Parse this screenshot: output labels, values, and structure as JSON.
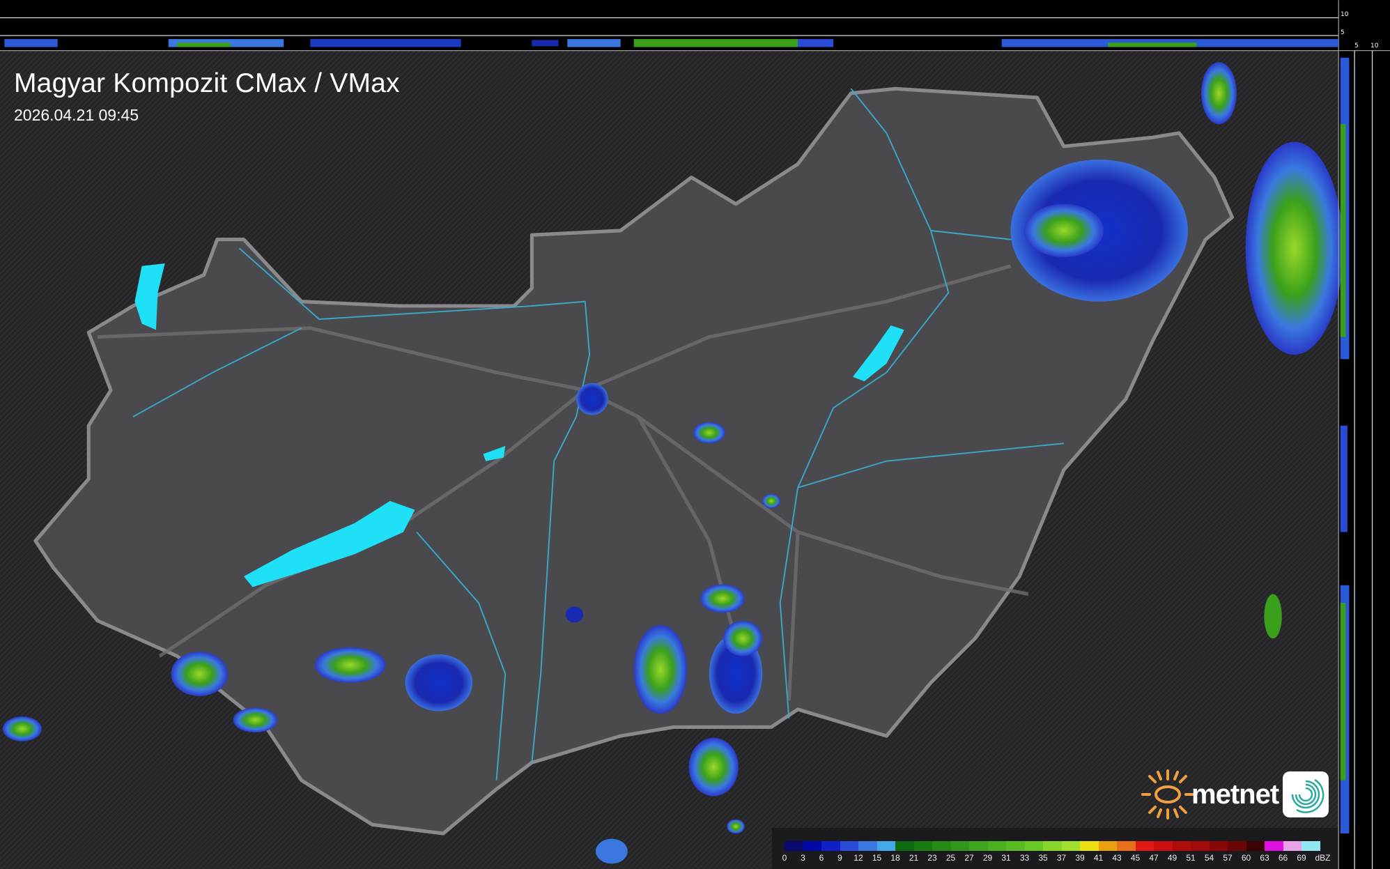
{
  "header": {
    "title": "Magyar Kompozit CMax / VMax",
    "timestamp": "2026.04.21 09:45"
  },
  "profile_axes": {
    "top_right_labels": [
      "10",
      "5"
    ],
    "right_bottom_labels": [
      "5",
      "10"
    ]
  },
  "legend": {
    "unit": "dBZ",
    "labels": [
      "0",
      "3",
      "6",
      "9",
      "12",
      "15",
      "18",
      "21",
      "23",
      "25",
      "27",
      "29",
      "31",
      "33",
      "35",
      "37",
      "39",
      "41",
      "43",
      "45",
      "47",
      "49",
      "51",
      "54",
      "57",
      "60",
      "63",
      "66",
      "69"
    ],
    "colors": [
      "#0a0a6e",
      "#0008a8",
      "#1020c8",
      "#2a4ad8",
      "#3a78e0",
      "#44a8e8",
      "#0e6a10",
      "#1a7a12",
      "#268a16",
      "#32961a",
      "#3ea41e",
      "#4cb020",
      "#5abc22",
      "#6ac824",
      "#88d428",
      "#a0e02c",
      "#e8e010",
      "#eaa010",
      "#e87018",
      "#e01818",
      "#c81010",
      "#b00c0c",
      "#a00a0a",
      "#880808",
      "#6a0606",
      "#3a0404",
      "#e010e0",
      "#e8a0e8",
      "#90e8f0"
    ]
  },
  "logo": {
    "brand": "metnet"
  },
  "colors": {
    "land_inside": "#4a4a4e",
    "land_outside": "#2a2a2c",
    "border": "#8a8a8e",
    "rivers": "#3aa8c8",
    "lakes": "#20e0f8",
    "settlements": "#ffffff"
  }
}
